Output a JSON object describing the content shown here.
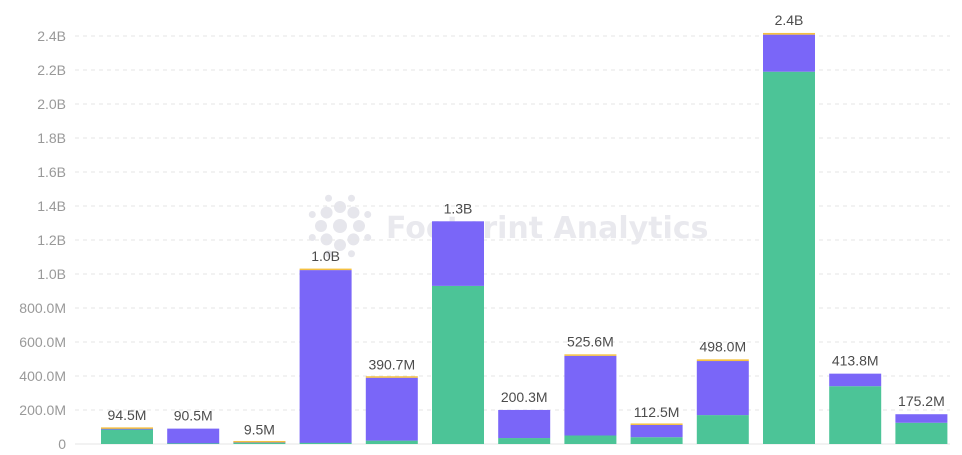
{
  "watermark": {
    "text": "Footprint Analytics",
    "icon": "footprint-logo-icon",
    "color": "#e6e6ec"
  },
  "colors": {
    "green": "#4cc497",
    "purple": "#7a66f8",
    "yellow": "#f5c040",
    "grid": "#e6e6e6",
    "tick": "#999999",
    "label": "#4c4c4c"
  },
  "chart_data": {
    "type": "bar",
    "stacked": true,
    "title": "",
    "xlabel": "",
    "ylabel": "",
    "ylim": [
      0,
      2400000000
    ],
    "grid": true,
    "legend": "none",
    "yticks": [
      {
        "value": 0,
        "label": "0"
      },
      {
        "value": 200000000,
        "label": "200.0M"
      },
      {
        "value": 400000000,
        "label": "400.0M"
      },
      {
        "value": 600000000,
        "label": "600.0M"
      },
      {
        "value": 800000000,
        "label": "800.0M"
      },
      {
        "value": 1000000000,
        "label": "1.0B"
      },
      {
        "value": 1200000000,
        "label": "1.2B"
      },
      {
        "value": 1400000000,
        "label": "1.4B"
      },
      {
        "value": 1600000000,
        "label": "1.6B"
      },
      {
        "value": 1800000000,
        "label": "1.8B"
      },
      {
        "value": 2000000000,
        "label": "2.0B"
      },
      {
        "value": 2200000000,
        "label": "2.2B"
      },
      {
        "value": 2400000000,
        "label": "2.4B"
      }
    ],
    "bar_count": 13,
    "series": [
      {
        "color": "#4cc497",
        "values": [
          85000000,
          4000000,
          7000000,
          7000000,
          20000000,
          930000000,
          35000000,
          50000000,
          40000000,
          170000000,
          2190000000,
          340000000,
          125000000
        ]
      },
      {
        "color": "#7a66f8",
        "values": [
          4000000,
          86500000,
          2000000,
          1016000000,
          369700000,
          380000000,
          165300000,
          468600000,
          72000000,
          318000000,
          218000000,
          73800000,
          50200000
        ]
      },
      {
        "color": "#f5c040",
        "values": [
          5500000,
          0,
          500000,
          7000000,
          1000000,
          0,
          0,
          7000000,
          500000,
          10000000,
          10000000,
          0,
          0
        ]
      }
    ],
    "totals": [
      "94.5M",
      "90.5M",
      "9.5M",
      "1.0B",
      "390.7M",
      "1.3B",
      "200.3M",
      "525.6M",
      "112.5M",
      "498.0M",
      "2.4B",
      "413.8M",
      "175.2M"
    ],
    "total_values": [
      94500000,
      90500000,
      9500000,
      1030000000,
      390700000,
      1310000000,
      200300000,
      525600000,
      112500000,
      498000000,
      2418000000,
      413800000,
      175200000
    ]
  }
}
